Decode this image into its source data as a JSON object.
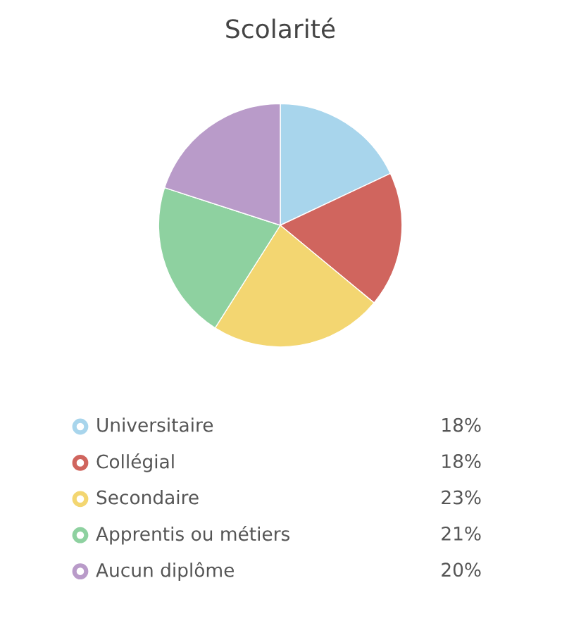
{
  "chart_data": {
    "type": "pie",
    "title": "Scolarité",
    "categories": [
      "Universitaire",
      "Collégial",
      "Secondaire",
      "Apprentis ou métiers",
      "Aucun diplôme"
    ],
    "values": [
      18,
      18,
      23,
      21,
      20
    ],
    "value_labels": [
      "18%",
      "18%",
      "23%",
      "21%",
      "20%"
    ],
    "colors": [
      "#a8d5ec",
      "#d0655e",
      "#f3d671",
      "#8ed1a0",
      "#b99bc9"
    ],
    "legend": "bottom"
  }
}
